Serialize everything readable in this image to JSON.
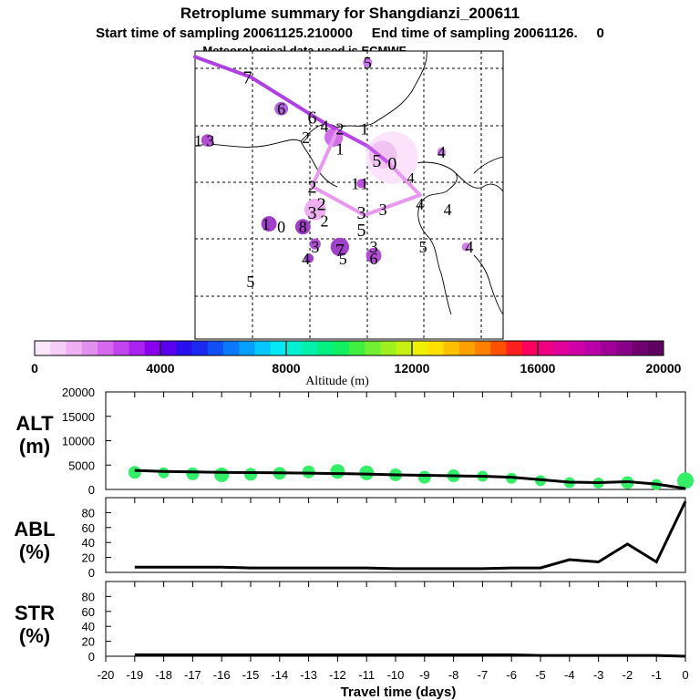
{
  "title": {
    "line1": "Retroplume summary for Shangdianzi_200611",
    "line2": "Start time of sampling 20061125.210000     End time of sampling 20061126.     0",
    "line3": "Meteorological data used is ECMWF"
  },
  "colorbar": {
    "label": "Altitude (m)",
    "ticks": [
      "0",
      "4000",
      "8000",
      "12000",
      "16000",
      "20000"
    ],
    "colors": [
      "#fbe7fb",
      "#f5cdf6",
      "#eeb0f2",
      "#e38ff0",
      "#d56aee",
      "#c045ee",
      "#a823ee",
      "#8a00ee",
      "#5a00ee",
      "#2a10ee",
      "#1a28f0",
      "#1050f5",
      "#0a78f8",
      "#05a0fb",
      "#05c8fd",
      "#05e8f5",
      "#05f0d0",
      "#05f0aa",
      "#05f080",
      "#10f060",
      "#40f040",
      "#70f030",
      "#a0f020",
      "#c8f010",
      "#eef005",
      "#fde000",
      "#fdc000",
      "#fda000",
      "#fd8000",
      "#fd5000",
      "#fd2020",
      "#fd0060",
      "#f00080",
      "#e0009a",
      "#d000a8",
      "#b800a8",
      "#a00098",
      "#880088",
      "#700070",
      "#600060"
    ]
  },
  "map": {
    "labels": [
      {
        "text": "7",
        "col": 0.17,
        "row": 0.09,
        "size": 20
      },
      {
        "text": "5",
        "col": 0.56,
        "row": 0.04,
        "size": 18
      },
      {
        "text": "6",
        "col": 0.28,
        "row": 0.2,
        "size": 18
      },
      {
        "text": "6",
        "col": 0.38,
        "row": 0.23,
        "size": 20
      },
      {
        "text": "4",
        "col": 0.42,
        "row": 0.26,
        "size": 18
      },
      {
        "text": "2",
        "col": 0.47,
        "row": 0.27,
        "size": 18
      },
      {
        "text": "1",
        "col": 0.55,
        "row": 0.27,
        "size": 18
      },
      {
        "text": "2",
        "col": 0.36,
        "row": 0.3,
        "size": 18
      },
      {
        "text": "1",
        "col": 0.47,
        "row": 0.34,
        "size": 18
      },
      {
        "text": "3",
        "col": 0.05,
        "row": 0.31,
        "size": 18
      },
      {
        "text": "1",
        "col": 0.01,
        "row": 0.31,
        "size": 18
      },
      {
        "text": "4",
        "col": 0.8,
        "row": 0.35,
        "size": 18
      },
      {
        "text": "5",
        "col": 0.59,
        "row": 0.38,
        "size": 20
      },
      {
        "text": "0",
        "col": 0.64,
        "row": 0.39,
        "size": 20
      },
      {
        "text": "1",
        "col": 0.52,
        "row": 0.46,
        "size": 18
      },
      {
        "text": "1",
        "col": 0.55,
        "row": 0.46,
        "size": 18
      },
      {
        "text": "2",
        "col": 0.38,
        "row": 0.47,
        "size": 20
      },
      {
        "text": "4",
        "col": 0.7,
        "row": 0.44,
        "size": 16
      },
      {
        "text": "2",
        "col": 0.41,
        "row": 0.53,
        "size": 20
      },
      {
        "text": "3",
        "col": 0.38,
        "row": 0.56,
        "size": 20
      },
      {
        "text": "3",
        "col": 0.54,
        "row": 0.56,
        "size": 20
      },
      {
        "text": "3",
        "col": 0.61,
        "row": 0.55,
        "size": 18
      },
      {
        "text": "4",
        "col": 0.73,
        "row": 0.53,
        "size": 18
      },
      {
        "text": "4",
        "col": 0.82,
        "row": 0.55,
        "size": 18
      },
      {
        "text": "2",
        "col": 0.42,
        "row": 0.59,
        "size": 18
      },
      {
        "text": "1",
        "col": 0.23,
        "row": 0.6,
        "size": 18
      },
      {
        "text": "0",
        "col": 0.28,
        "row": 0.61,
        "size": 18
      },
      {
        "text": "8",
        "col": 0.35,
        "row": 0.61,
        "size": 18
      },
      {
        "text": "5",
        "col": 0.54,
        "row": 0.62,
        "size": 20
      },
      {
        "text": "3",
        "col": 0.39,
        "row": 0.68,
        "size": 18
      },
      {
        "text": "7",
        "col": 0.47,
        "row": 0.69,
        "size": 20
      },
      {
        "text": "3",
        "col": 0.58,
        "row": 0.68,
        "size": 18
      },
      {
        "text": "5",
        "col": 0.74,
        "row": 0.68,
        "size": 18
      },
      {
        "text": "4",
        "col": 0.89,
        "row": 0.68,
        "size": 18
      },
      {
        "text": "4",
        "col": 0.36,
        "row": 0.72,
        "size": 18
      },
      {
        "text": "5",
        "col": 0.48,
        "row": 0.72,
        "size": 18
      },
      {
        "text": "6",
        "col": 0.58,
        "row": 0.72,
        "size": 18
      },
      {
        "text": "5",
        "col": 0.18,
        "row": 0.8,
        "size": 18
      }
    ],
    "blobs": [
      {
        "col": 0.64,
        "row": 0.37,
        "r": 0.085,
        "color": "#fbe3fb"
      },
      {
        "col": 0.61,
        "row": 0.36,
        "r": 0.045,
        "color": "#f2c3f2"
      },
      {
        "col": 0.56,
        "row": 0.04,
        "r": 0.015,
        "color": "#c875e8"
      },
      {
        "col": 0.28,
        "row": 0.2,
        "r": 0.022,
        "color": "#b060d8"
      },
      {
        "col": 0.45,
        "row": 0.3,
        "r": 0.03,
        "color": "#d070e8"
      },
      {
        "col": 0.04,
        "row": 0.31,
        "r": 0.02,
        "color": "#b050d0"
      },
      {
        "col": 0.54,
        "row": 0.46,
        "r": 0.015,
        "color": "#c050e0"
      },
      {
        "col": 0.39,
        "row": 0.55,
        "r": 0.035,
        "color": "#eeb0f0"
      },
      {
        "col": 0.24,
        "row": 0.6,
        "r": 0.025,
        "color": "#a040c8"
      },
      {
        "col": 0.35,
        "row": 0.61,
        "r": 0.025,
        "color": "#a040c8"
      },
      {
        "col": 0.39,
        "row": 0.67,
        "r": 0.018,
        "color": "#b050d0"
      },
      {
        "col": 0.47,
        "row": 0.68,
        "r": 0.03,
        "color": "#a040c8"
      },
      {
        "col": 0.58,
        "row": 0.71,
        "r": 0.025,
        "color": "#b050d0"
      },
      {
        "col": 0.37,
        "row": 0.72,
        "r": 0.015,
        "color": "#a040c8"
      },
      {
        "col": 0.88,
        "row": 0.68,
        "r": 0.014,
        "color": "#d080e8"
      },
      {
        "col": 0.8,
        "row": 0.35,
        "r": 0.014,
        "color": "#d080e8"
      }
    ],
    "track": [
      {
        "from": [
          0.0,
          0.02
        ],
        "to": [
          0.18,
          0.09
        ],
        "color": "#b040e0"
      },
      {
        "from": [
          0.18,
          0.09
        ],
        "to": [
          0.42,
          0.25
        ],
        "color": "#b040e0"
      },
      {
        "from": [
          0.42,
          0.25
        ],
        "to": [
          0.56,
          0.33
        ],
        "color": "#b845e8"
      },
      {
        "from": [
          0.56,
          0.33
        ],
        "to": [
          0.63,
          0.39
        ],
        "color": "#c058ea"
      },
      {
        "from": [
          0.63,
          0.39
        ],
        "to": [
          0.73,
          0.5
        ],
        "color": "#e898ee"
      },
      {
        "from": [
          0.73,
          0.5
        ],
        "to": [
          0.55,
          0.57
        ],
        "color": "#e898ee"
      },
      {
        "from": [
          0.55,
          0.57
        ],
        "to": [
          0.38,
          0.47
        ],
        "color": "#e898ee"
      },
      {
        "from": [
          0.38,
          0.47
        ],
        "to": [
          0.46,
          0.28
        ],
        "color": "#e898ee"
      }
    ]
  },
  "chart_data": [
    {
      "type": "scatter",
      "title": "Altitude of plume",
      "ylabel": "ALT\n(m)",
      "ylabel_lines": [
        "ALT",
        "(m)"
      ],
      "xlim": [
        -20,
        0
      ],
      "ylim": [
        0,
        20000
      ],
      "yticks": [
        "20000",
        "15000",
        "10000",
        "5000",
        "0"
      ],
      "ytick_values": [
        20000,
        15000,
        10000,
        5000,
        0
      ],
      "x": [
        -19,
        -18,
        -17,
        -16,
        -15,
        -14,
        -13,
        -12,
        -11,
        -10,
        -9,
        -8,
        -7,
        -6,
        -5,
        -4,
        -3,
        -2,
        -1,
        0
      ],
      "mean_line": [
        3900,
        3700,
        3600,
        3500,
        3450,
        3400,
        3350,
        3250,
        3150,
        3000,
        2900,
        2800,
        2700,
        2500,
        2000,
        1500,
        1400,
        1600,
        1100,
        200
      ],
      "points": [
        3500,
        3400,
        3200,
        3000,
        3100,
        3300,
        3600,
        3700,
        3400,
        3000,
        2500,
        2800,
        2700,
        2300,
        1800,
        1400,
        1300,
        1400,
        1000,
        1800
      ],
      "point_size": [
        7,
        6,
        7,
        8,
        7,
        7,
        7,
        8,
        8,
        7,
        7,
        7,
        6,
        6,
        6,
        6,
        6,
        7,
        6,
        9
      ]
    },
    {
      "type": "line",
      "ylabel_lines": [
        "ABL",
        "(%)"
      ],
      "xlim": [
        -20,
        0
      ],
      "ylim": [
        0,
        100
      ],
      "yticks": [
        "80",
        "60",
        "40",
        "20",
        "0"
      ],
      "ytick_values": [
        80,
        60,
        40,
        20,
        0
      ],
      "x": [
        -19,
        -18,
        -17,
        -16,
        -15,
        -14,
        -13,
        -12,
        -11,
        -10,
        -9,
        -8,
        -7,
        -6,
        -5,
        -4,
        -3,
        -2,
        -1,
        0
      ],
      "values": [
        7,
        7,
        7,
        7,
        6,
        6,
        6,
        6,
        6,
        5,
        5,
        5,
        5,
        6,
        6,
        17,
        14,
        38,
        14,
        95
      ]
    },
    {
      "type": "line",
      "ylabel_lines": [
        "STR",
        "(%)"
      ],
      "xlim": [
        -20,
        0
      ],
      "ylim": [
        0,
        100
      ],
      "yticks": [
        "80",
        "60",
        "40",
        "20",
        "0"
      ],
      "ytick_values": [
        80,
        60,
        40,
        20,
        0
      ],
      "x": [
        -19,
        -18,
        -17,
        -16,
        -15,
        -14,
        -13,
        -12,
        -11,
        -10,
        -9,
        -8,
        -7,
        -6,
        -5,
        -4,
        -3,
        -2,
        -1,
        0
      ],
      "values": [
        2,
        2,
        2,
        2,
        2,
        2,
        2,
        2,
        2,
        2,
        2,
        2,
        2,
        2,
        1,
        1,
        1,
        1,
        1,
        0
      ]
    }
  ],
  "xaxis": {
    "label": "Travel time (days)",
    "ticks": [
      "-20",
      "-19",
      "-18",
      "-17",
      "-16",
      "-15",
      "-14",
      "-13",
      "-12",
      "-11",
      "-10",
      "-9",
      "-8",
      "-7",
      "-6",
      "-5",
      "-4",
      "-3",
      "-2",
      "-1",
      "0"
    ],
    "tick_values": [
      -20,
      -19,
      -18,
      -17,
      -16,
      -15,
      -14,
      -13,
      -12,
      -11,
      -10,
      -9,
      -8,
      -7,
      -6,
      -5,
      -4,
      -3,
      -2,
      -1,
      0
    ]
  }
}
